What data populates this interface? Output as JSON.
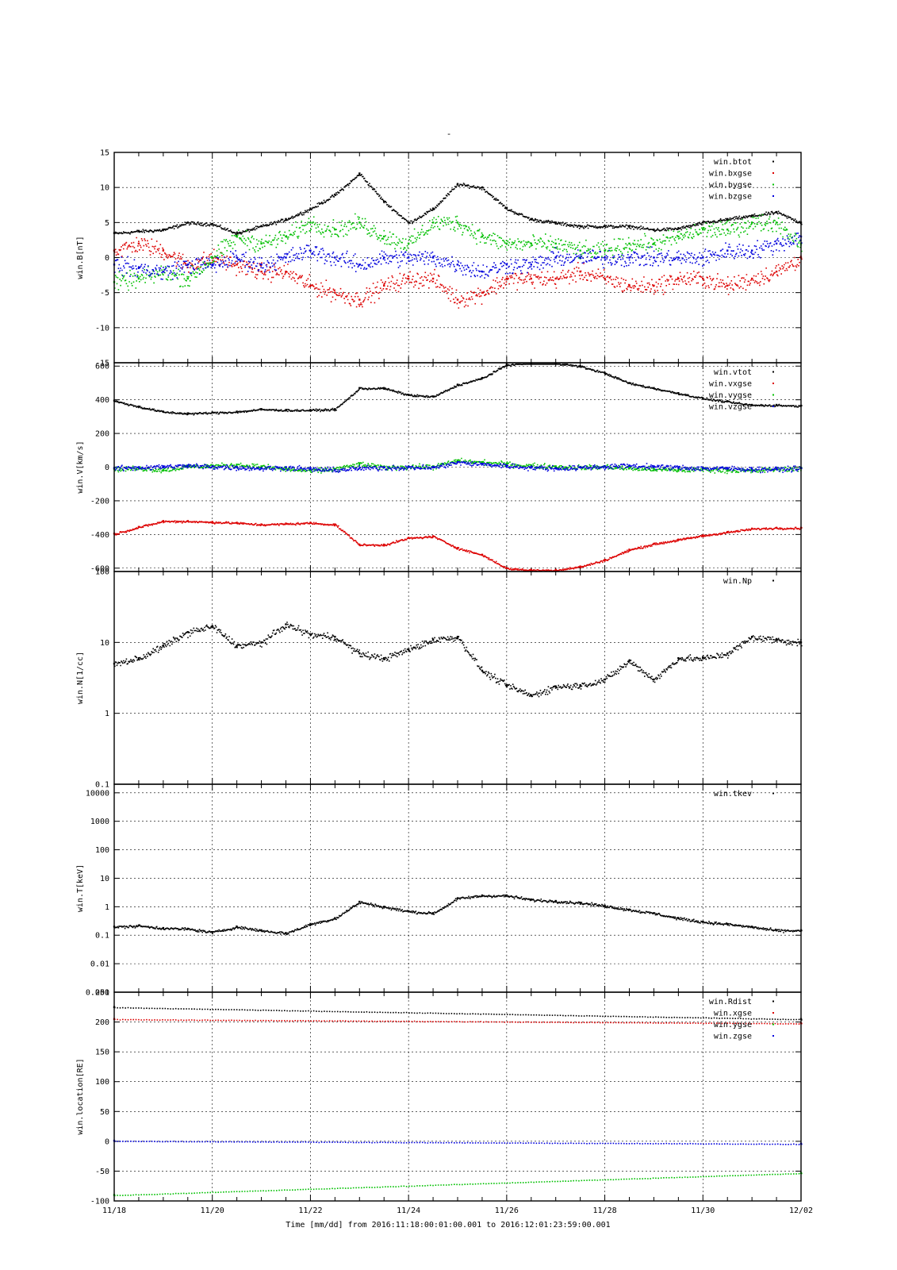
{
  "figure": {
    "top_mark": "-",
    "xlabel": "Time [mm/dd]  from 2016:11:18:00:01:00.001  to  2016:12:01:23:59:00.001",
    "xticks": [
      "11/18",
      "11/20",
      "11/22",
      "11/24",
      "11/26",
      "11/28",
      "11/30",
      "12/02"
    ],
    "x_range_days": [
      0,
      14
    ],
    "colors": {
      "black": "#000000",
      "red": "#dd0000",
      "green": "#00c000",
      "blue": "#0000dd"
    }
  },
  "chart_data": [
    {
      "type": "scatter",
      "ylabel": "win.B[nT]",
      "ylim": [
        -15,
        15
      ],
      "yscale": "linear",
      "yticks": [
        "15",
        "10",
        "5",
        "0",
        "-5",
        "-10",
        "-15"
      ],
      "ytick_values": [
        15,
        10,
        5,
        0,
        -5,
        -10,
        -15
      ],
      "grid": true,
      "legend": "top-right",
      "series": [
        {
          "name": "win.btot",
          "color": "#000000",
          "x": [
            0,
            0.5,
            1,
            1.5,
            2,
            2.5,
            3,
            3.5,
            4,
            4.5,
            5,
            5.5,
            6,
            6.5,
            7,
            7.5,
            8,
            8.5,
            9,
            9.5,
            10,
            10.5,
            11,
            11.5,
            12,
            12.5,
            13,
            13.5,
            14
          ],
          "values": [
            3.5,
            3.8,
            4,
            5,
            4.8,
            3.5,
            4.5,
            5.5,
            7,
            9,
            12,
            8,
            5,
            7,
            10.5,
            10,
            7,
            5.5,
            5,
            4.5,
            4.5,
            4.5,
            4,
            4.2,
            5,
            5.5,
            6,
            6.5,
            5
          ]
        },
        {
          "name": "win.bxgse",
          "color": "#dd0000",
          "x": [
            0,
            0.5,
            1,
            1.5,
            2,
            2.5,
            3,
            3.5,
            4,
            4.5,
            5,
            5.5,
            6,
            6.5,
            7,
            7.5,
            8,
            8.5,
            9,
            9.5,
            10,
            10.5,
            11,
            11.5,
            12,
            12.5,
            13,
            13.5,
            14
          ],
          "values": [
            1,
            2,
            1,
            -1,
            0,
            -1,
            -2,
            -2,
            -4,
            -5,
            -6,
            -4,
            -3,
            -3,
            -6,
            -5,
            -3,
            -3,
            -3,
            -2,
            -3,
            -4,
            -4,
            -3,
            -3,
            -4,
            -3,
            -2,
            0
          ]
        },
        {
          "name": "win.bygse",
          "color": "#00c000",
          "x": [
            0,
            0.5,
            1,
            1.5,
            2,
            2.5,
            3,
            3.5,
            4,
            4.5,
            5,
            5.5,
            6,
            6.5,
            7,
            7.5,
            8,
            8.5,
            9,
            9.5,
            10,
            10.5,
            11,
            11.5,
            12,
            12.5,
            13,
            13.5,
            14
          ],
          "values": [
            -3.5,
            -3,
            -2,
            -3,
            0,
            3,
            2,
            3,
            5,
            4,
            5,
            3,
            2,
            5,
            5,
            3,
            2,
            2,
            2,
            1,
            1,
            2,
            2,
            3,
            4,
            4,
            5,
            5,
            2
          ]
        },
        {
          "name": "win.bzgse",
          "color": "#0000dd",
          "x": [
            0,
            0.5,
            1,
            1.5,
            2,
            2.5,
            3,
            3.5,
            4,
            4.5,
            5,
            5.5,
            6,
            6.5,
            7,
            7.5,
            8,
            8.5,
            9,
            9.5,
            10,
            10.5,
            11,
            11.5,
            12,
            12.5,
            13,
            13.5,
            14
          ],
          "values": [
            -1,
            -1.5,
            -2,
            -1,
            -1,
            0,
            -1,
            0,
            1,
            0,
            -1,
            0,
            0,
            0,
            -1,
            -2,
            -1,
            -1,
            0,
            0,
            0,
            0,
            0,
            0,
            0,
            1,
            1,
            2,
            3
          ]
        }
      ]
    },
    {
      "type": "scatter",
      "ylabel": "win.V[km/s]",
      "ylim": [
        -620,
        620
      ],
      "yscale": "linear",
      "yticks": [
        "600",
        "400",
        "200",
        "0",
        "-200",
        "-400",
        "-600"
      ],
      "ytick_values": [
        600,
        400,
        200,
        0,
        -200,
        -400,
        -600
      ],
      "grid": true,
      "legend": "top-right",
      "series": [
        {
          "name": "win.vtot",
          "color": "#000000",
          "x": [
            0,
            0.5,
            1,
            1.5,
            2,
            2.5,
            3,
            3.5,
            4,
            4.5,
            5,
            5.5,
            6,
            6.5,
            7,
            7.5,
            8,
            8.5,
            9,
            9.5,
            10,
            10.5,
            11,
            11.5,
            12,
            12.5,
            13,
            13.5,
            14
          ],
          "values": [
            395,
            360,
            330,
            320,
            325,
            330,
            345,
            340,
            340,
            345,
            470,
            470,
            430,
            420,
            490,
            530,
            610,
            620,
            620,
            600,
            560,
            500,
            470,
            440,
            410,
            390,
            370,
            370,
            365
          ]
        },
        {
          "name": "win.vxgse",
          "color": "#dd0000",
          "x": [
            0,
            0.5,
            1,
            1.5,
            2,
            2.5,
            3,
            3.5,
            4,
            4.5,
            5,
            5.5,
            6,
            6.5,
            7,
            7.5,
            8,
            8.5,
            9,
            9.5,
            10,
            10.5,
            11,
            11.5,
            12,
            12.5,
            13,
            13.5,
            14
          ],
          "values": [
            -395,
            -355,
            -320,
            -320,
            -325,
            -330,
            -340,
            -335,
            -330,
            -340,
            -460,
            -460,
            -420,
            -410,
            -480,
            -520,
            -600,
            -610,
            -610,
            -590,
            -550,
            -490,
            -455,
            -430,
            -405,
            -385,
            -365,
            -360,
            -360
          ]
        },
        {
          "name": "win.vygse",
          "color": "#00c000",
          "x": [
            0,
            0.5,
            1,
            1.5,
            2,
            2.5,
            3,
            3.5,
            4,
            4.5,
            5,
            5.5,
            6,
            6.5,
            7,
            7.5,
            8,
            8.5,
            9,
            9.5,
            10,
            10.5,
            11,
            11.5,
            12,
            12.5,
            13,
            13.5,
            14
          ],
          "values": [
            -10,
            -5,
            -15,
            5,
            10,
            15,
            5,
            -10,
            -20,
            -10,
            20,
            0,
            5,
            5,
            40,
            30,
            20,
            10,
            5,
            0,
            5,
            -5,
            -10,
            -15,
            -10,
            -15,
            -20,
            -10,
            -5
          ]
        },
        {
          "name": "win.vzgse",
          "color": "#0000dd",
          "x": [
            0,
            0.5,
            1,
            1.5,
            2,
            2.5,
            3,
            3.5,
            4,
            4.5,
            5,
            5.5,
            6,
            6.5,
            7,
            7.5,
            8,
            8.5,
            9,
            9.5,
            10,
            10.5,
            11,
            11.5,
            12,
            12.5,
            13,
            13.5,
            14
          ],
          "values": [
            -5,
            0,
            5,
            10,
            5,
            0,
            -5,
            0,
            -10,
            -15,
            -5,
            0,
            0,
            0,
            30,
            20,
            10,
            0,
            -5,
            0,
            5,
            10,
            5,
            0,
            -5,
            -5,
            -10,
            -10,
            -5
          ]
        }
      ]
    },
    {
      "type": "scatter",
      "ylabel": "win.N[1/cc]",
      "ylim": [
        0.1,
        100
      ],
      "yscale": "log",
      "yticks": [
        "100",
        "10",
        "1",
        "0.1"
      ],
      "ytick_values": [
        100,
        10,
        1,
        0.1
      ],
      "grid": true,
      "legend": "top-right",
      "series": [
        {
          "name": "win.Np",
          "color": "#000000",
          "x": [
            0,
            0.5,
            1,
            1.5,
            2,
            2.5,
            3,
            3.5,
            4,
            4.5,
            5,
            5.5,
            6,
            6.5,
            7,
            7.5,
            8,
            8.5,
            9,
            9.5,
            10,
            10.5,
            11,
            11.5,
            12,
            12.5,
            13,
            13.5,
            14
          ],
          "values": [
            5,
            6,
            9,
            14,
            17,
            9,
            10,
            18,
            13,
            12,
            7,
            6,
            8,
            11,
            12,
            4,
            2.5,
            1.8,
            2.4,
            2.5,
            3,
            5.5,
            3,
            6,
            6,
            7,
            12,
            11,
            10
          ]
        }
      ]
    },
    {
      "type": "scatter",
      "ylabel": "win.T[keV]",
      "ylim": [
        0.001,
        20000
      ],
      "yscale": "log",
      "yticks": [
        "10000",
        "1000",
        "100",
        "10",
        "1",
        "0.1",
        "0.01",
        "0.001"
      ],
      "ytick_values": [
        10000,
        1000,
        100,
        10,
        1,
        0.1,
        0.01,
        0.001
      ],
      "grid": true,
      "legend": "top-right",
      "series": [
        {
          "name": "win.tkev",
          "color": "#000000",
          "x": [
            0,
            0.5,
            1,
            1.5,
            2,
            2.5,
            3,
            3.5,
            4,
            4.5,
            5,
            5.5,
            6,
            6.5,
            7,
            7.5,
            8,
            8.5,
            9,
            9.5,
            10,
            10.5,
            11,
            11.5,
            12,
            12.5,
            13,
            13.5,
            14
          ],
          "values": [
            0.2,
            0.22,
            0.18,
            0.17,
            0.13,
            0.2,
            0.15,
            0.12,
            0.25,
            0.4,
            1.5,
            1,
            0.7,
            0.6,
            2,
            2.5,
            2.5,
            1.8,
            1.6,
            1.4,
            1.1,
            0.8,
            0.6,
            0.4,
            0.3,
            0.25,
            0.2,
            0.15,
            0.15
          ]
        }
      ]
    },
    {
      "type": "scatter",
      "ylabel": "win.location[RE]",
      "ylim": [
        -100,
        250
      ],
      "yscale": "linear",
      "yticks": [
        "250",
        "200",
        "150",
        "100",
        "50",
        "0",
        "-50",
        "-100"
      ],
      "ytick_values": [
        250,
        200,
        150,
        100,
        50,
        0,
        -50,
        -100
      ],
      "grid": true,
      "legend": "top-right",
      "series": [
        {
          "name": "win.Rdist",
          "color": "#000000",
          "x": [
            0,
            14
          ],
          "values": [
            225,
            205
          ]
        },
        {
          "name": "win.xgse",
          "color": "#dd0000",
          "x": [
            0,
            14
          ],
          "values": [
            205,
            198
          ]
        },
        {
          "name": "win.ygse",
          "color": "#00c000",
          "x": [
            0,
            14
          ],
          "values": [
            -90,
            -53
          ]
        },
        {
          "name": "win.zgse",
          "color": "#0000dd",
          "x": [
            0,
            14
          ],
          "values": [
            1,
            -4
          ]
        }
      ]
    }
  ]
}
